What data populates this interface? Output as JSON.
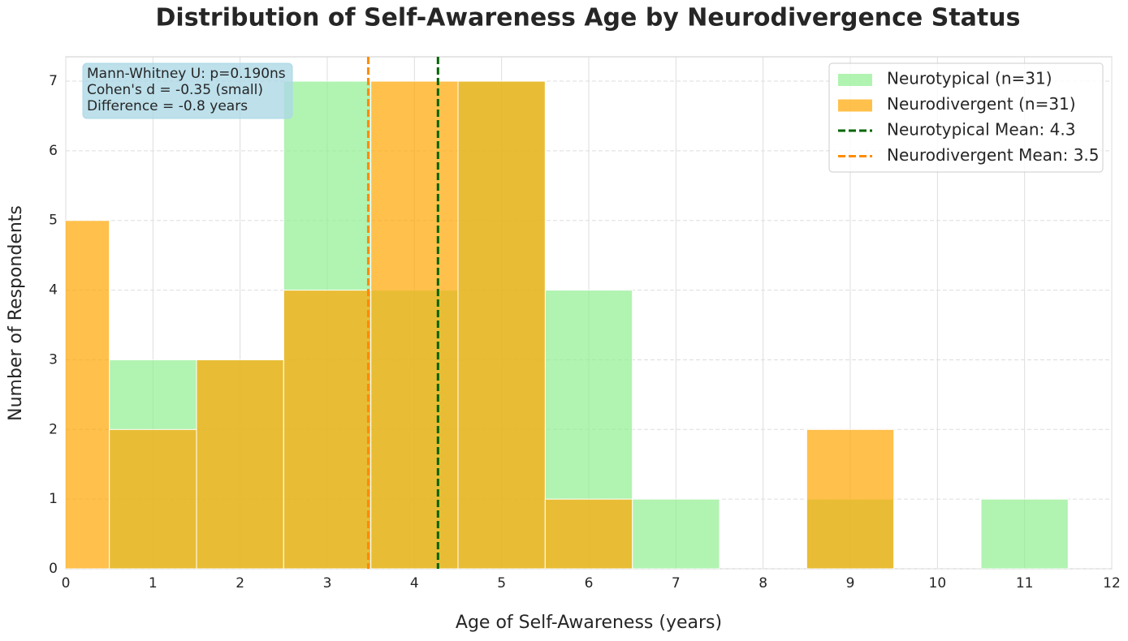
{
  "chart_data": {
    "type": "histogram",
    "title": "Distribution of Self-Awareness Age by Neurodivergence Status",
    "xlabel": "Age of Self-Awareness (years)",
    "ylabel": "Number of Respondents",
    "bins": [
      -0.5,
      0.5,
      1.5,
      2.5,
      3.5,
      4.5,
      5.5,
      6.5,
      7.5,
      8.5,
      9.5,
      10.5,
      11.5
    ],
    "series": [
      {
        "name": "Neurotypical (n=31)",
        "color": "#90ee90",
        "values": [
          0,
          3,
          3,
          7,
          4,
          7,
          4,
          1,
          0,
          1,
          0,
          1
        ]
      },
      {
        "name": "Neurodivergent (n=31)",
        "color": "#ffa500",
        "values": [
          5,
          2,
          3,
          4,
          7,
          7,
          1,
          0,
          0,
          2,
          0,
          0
        ]
      }
    ],
    "mean_lines": [
      {
        "name": "Neurotypical Mean: 4.3",
        "x": 4.27,
        "color": "#006400"
      },
      {
        "name": "Neurodivergent Mean: 3.5",
        "x": 3.47,
        "color": "#ff8c00"
      }
    ],
    "annotation": [
      "Mann-Whitney U: p=0.190ns",
      "Cohen's d = -0.35 (small)",
      "Difference = -0.8 years"
    ],
    "xlim": [
      0,
      12
    ],
    "xticks": [
      0,
      1,
      2,
      3,
      4,
      5,
      6,
      7,
      8,
      9,
      10,
      11,
      12
    ],
    "ylim": [
      0,
      7.35
    ],
    "yticks": [
      0,
      1,
      2,
      3,
      4,
      5,
      6,
      7
    ],
    "grid": true,
    "legend": "upper right"
  }
}
